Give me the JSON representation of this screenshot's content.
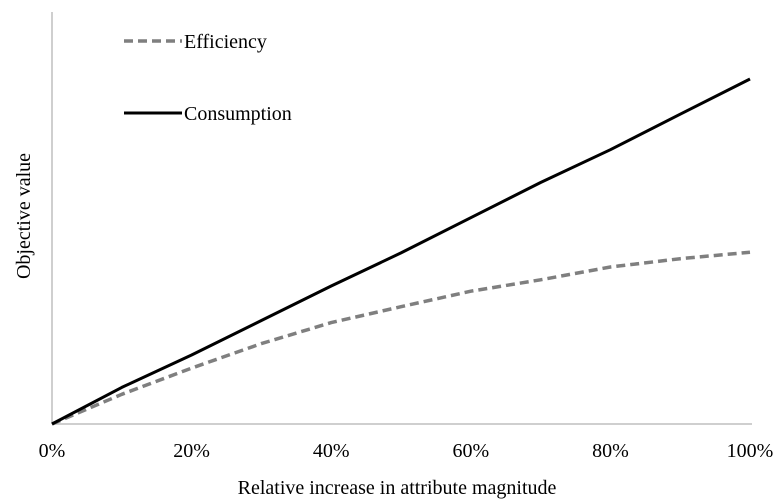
{
  "chart_data": {
    "type": "line",
    "xlabel": "Relative increase in attribute magnitude",
    "ylabel": "Objective value",
    "x": [
      0,
      10,
      20,
      30,
      40,
      50,
      60,
      70,
      80,
      90,
      100
    ],
    "x_tick_labels": [
      "0%",
      "20%",
      "40%",
      "60%",
      "80%",
      "100%"
    ],
    "x_ticks": [
      0,
      20,
      40,
      60,
      80,
      100
    ],
    "xlim": [
      0,
      100
    ],
    "ylim": [
      0,
      100
    ],
    "y_tick_labels_shown": false,
    "grid": false,
    "legend_position": "top-left",
    "series": [
      {
        "name": "Efficiency",
        "style": "dashed",
        "color": "#7f7f7f",
        "values": [
          0,
          8.6,
          16.2,
          23.3,
          29.4,
          34.0,
          38.5,
          41.8,
          45.5,
          47.9,
          49.8
        ]
      },
      {
        "name": "Consumption",
        "style": "solid",
        "color": "#000000",
        "values": [
          0,
          10.6,
          20.0,
          30.0,
          40.0,
          49.6,
          59.8,
          70.0,
          79.5,
          89.8,
          100.0
        ]
      }
    ]
  }
}
